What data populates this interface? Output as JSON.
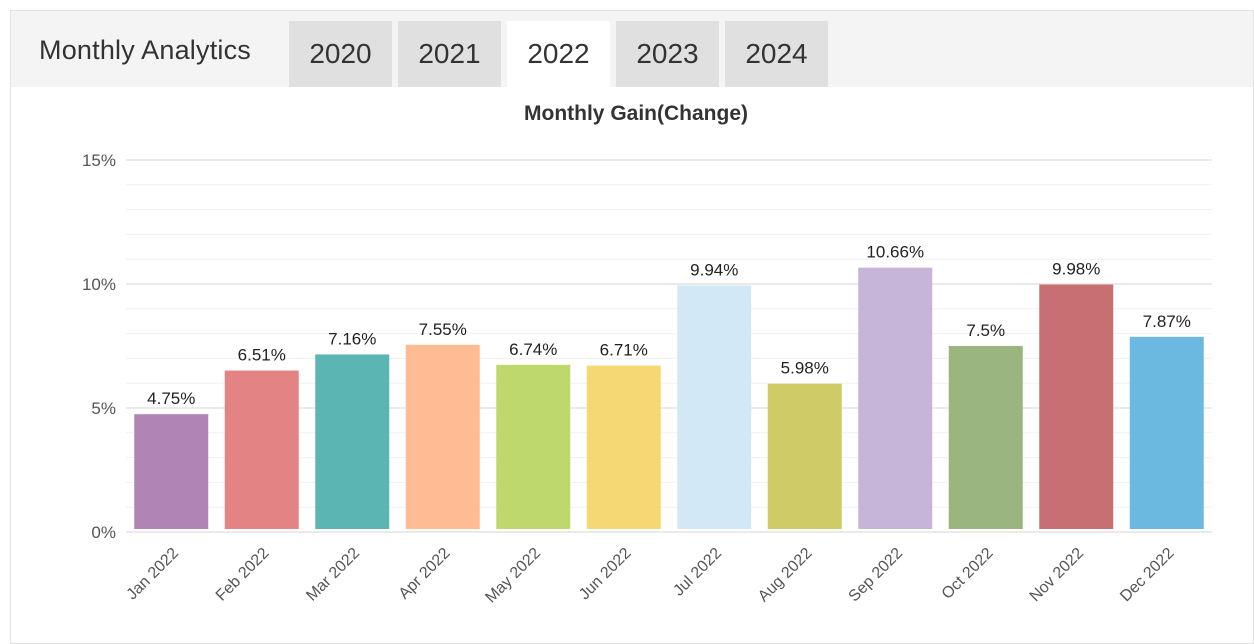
{
  "header": {
    "title": "Monthly Analytics",
    "tabs": [
      {
        "label": "2020",
        "active": false
      },
      {
        "label": "2021",
        "active": false
      },
      {
        "label": "2022",
        "active": true
      },
      {
        "label": "2023",
        "active": false
      },
      {
        "label": "2024",
        "active": false
      }
    ]
  },
  "chart_data": {
    "type": "bar",
    "title": "Monthly Gain(Change)",
    "categories": [
      "Jan 2022",
      "Feb 2022",
      "Mar 2022",
      "Apr 2022",
      "May 2022",
      "Jun 2022",
      "Jul 2022",
      "Aug 2022",
      "Sep 2022",
      "Oct 2022",
      "Nov 2022",
      "Dec 2022"
    ],
    "values": [
      4.75,
      6.51,
      7.16,
      7.55,
      6.74,
      6.71,
      9.94,
      5.98,
      10.66,
      7.5,
      9.98,
      7.87
    ],
    "data_labels": [
      "4.75%",
      "6.51%",
      "7.16%",
      "7.55%",
      "6.74%",
      "6.71%",
      "9.94%",
      "5.98%",
      "10.66%",
      "7.5%",
      "9.98%",
      "7.87%"
    ],
    "colors": [
      "#b084b5",
      "#e38383",
      "#5bb5b2",
      "#ffbb91",
      "#bfd86b",
      "#f5d874",
      "#d2e8f7",
      "#cfcb66",
      "#c6b4d9",
      "#9ab57d",
      "#c86f73",
      "#6bb9e1"
    ],
    "ytick_labels": [
      "0%",
      "5%",
      "10%",
      "15%"
    ],
    "ylim": [
      0,
      15
    ],
    "grid": true,
    "xlabel": "",
    "ylabel": ""
  }
}
